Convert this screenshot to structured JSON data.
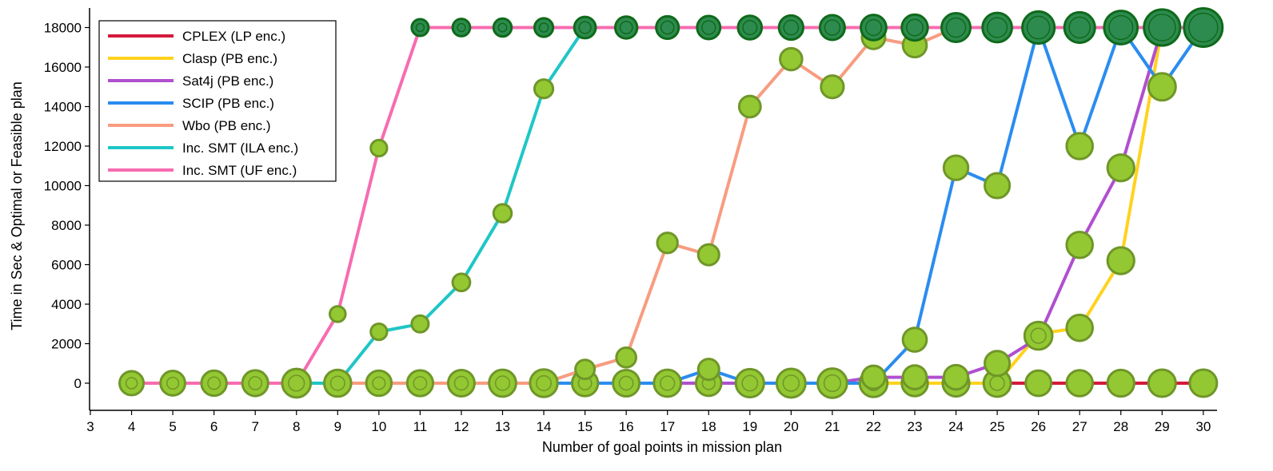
{
  "chart_data": {
    "type": "line",
    "title": "",
    "xlabel": "Number of goal points in mission plan",
    "ylabel": "Time in Sec & Optimal or Feasible plan",
    "xlim": [
      3,
      30.5
    ],
    "ylim": [
      -1300,
      18800
    ],
    "xticks": [
      3,
      4,
      5,
      6,
      7,
      8,
      9,
      10,
      11,
      12,
      13,
      14,
      15,
      16,
      17,
      18,
      19,
      20,
      21,
      22,
      23,
      24,
      25,
      26,
      27,
      28,
      29,
      30
    ],
    "yticks": [
      0,
      2000,
      4000,
      6000,
      8000,
      10000,
      12000,
      14000,
      16000,
      18000
    ],
    "legend_position": "top-left",
    "grid": false,
    "colors": {
      "marker_fill": "#93c832",
      "marker_edge": "#6f9628",
      "timeout_fill": "#2e8b4f",
      "timeout_edge": "#0f6a1a"
    },
    "series": [
      {
        "name": "CPLEX (LP enc.)",
        "color": "#d41a3a",
        "x": [
          4,
          5,
          6,
          7,
          8,
          9,
          10,
          11,
          12,
          13,
          14,
          15,
          16,
          17,
          18,
          19,
          20,
          21,
          22,
          23,
          24,
          25,
          26,
          27,
          28,
          29,
          30
        ],
        "values": [
          0,
          0,
          0,
          0,
          0,
          0,
          0,
          0,
          0,
          0,
          0,
          0,
          0,
          0,
          0,
          0,
          0,
          0,
          0,
          0,
          0,
          0,
          0,
          0,
          0,
          0,
          0
        ]
      },
      {
        "name": "Clasp (PB enc.)",
        "color": "#ffd21e",
        "x": [
          4,
          5,
          6,
          7,
          8,
          9,
          10,
          11,
          12,
          13,
          14,
          15,
          16,
          17,
          18,
          19,
          20,
          21,
          22,
          23,
          24,
          25,
          26,
          27,
          28,
          29,
          30
        ],
        "values": [
          0,
          0,
          0,
          0,
          0,
          0,
          0,
          0,
          0,
          0,
          0,
          0,
          0,
          0,
          0,
          0,
          0,
          0,
          0,
          0,
          0,
          0,
          2500,
          2800,
          6200,
          18000,
          18000
        ]
      },
      {
        "name": "Sat4j (PB enc.)",
        "color": "#b04fd0",
        "x": [
          4,
          5,
          6,
          7,
          8,
          9,
          10,
          11,
          12,
          13,
          14,
          15,
          16,
          17,
          18,
          19,
          20,
          21,
          22,
          23,
          24,
          25,
          26,
          27,
          28,
          29,
          30
        ],
        "values": [
          0,
          0,
          0,
          0,
          0,
          0,
          0,
          0,
          0,
          0,
          0,
          0,
          0,
          0,
          0,
          0,
          0,
          0,
          300,
          300,
          300,
          1000,
          2300,
          7000,
          10900,
          18000,
          18000
        ]
      },
      {
        "name": "SCIP (PB enc.)",
        "color": "#2b8cf0",
        "x": [
          4,
          5,
          6,
          7,
          8,
          9,
          10,
          11,
          12,
          13,
          14,
          15,
          16,
          17,
          18,
          19,
          20,
          21,
          22,
          23,
          24,
          25,
          26,
          27,
          28,
          29,
          30
        ],
        "values": [
          0,
          0,
          0,
          0,
          0,
          0,
          0,
          0,
          0,
          0,
          0,
          0,
          0,
          0,
          700,
          0,
          0,
          0,
          0,
          2200,
          10900,
          10000,
          18000,
          12000,
          18000,
          15000,
          18000
        ]
      },
      {
        "name": "Wbo (PB enc.)",
        "color": "#f89c80",
        "x": [
          4,
          5,
          6,
          7,
          8,
          9,
          10,
          11,
          12,
          13,
          14,
          15,
          16,
          17,
          18,
          19,
          20,
          21,
          22,
          23,
          24,
          25,
          26,
          27,
          28,
          29,
          30
        ],
        "values": [
          0,
          0,
          0,
          0,
          0,
          0,
          0,
          0,
          0,
          0,
          0,
          700,
          1300,
          7100,
          6500,
          14000,
          16400,
          15000,
          17500,
          17100,
          18000,
          18000,
          18000,
          18000,
          18000,
          18000,
          18000
        ]
      },
      {
        "name": "Inc. SMT (ILA enc.)",
        "color": "#1fc6c6",
        "x": [
          8,
          9,
          10,
          11,
          12,
          13,
          14,
          15,
          16,
          17,
          18,
          19,
          20,
          21,
          22,
          23,
          24,
          25,
          26,
          27,
          28,
          29,
          30
        ],
        "values": [
          0,
          0,
          2600,
          3000,
          5100,
          8600,
          14900,
          18000,
          18000,
          18000,
          18000,
          18000,
          18000,
          18000,
          18000,
          18000,
          18000,
          18000,
          18000,
          18000,
          18000,
          18000,
          18000
        ]
      },
      {
        "name": "Inc. SMT (UF enc.)",
        "color": "#f76cb0",
        "x": [
          4,
          5,
          6,
          7,
          8,
          9,
          10,
          11,
          12,
          13,
          14,
          15,
          16,
          17,
          18,
          19,
          20,
          21,
          22,
          23,
          24,
          25,
          26,
          27,
          28,
          29,
          30
        ],
        "values": [
          0,
          0,
          0,
          0,
          0,
          3500,
          11900,
          18000,
          18000,
          18000,
          18000,
          18000,
          18000,
          18000,
          18000,
          18000,
          18000,
          18000,
          18000,
          18000,
          18000,
          18000,
          18000,
          18000,
          18000,
          18000,
          18000
        ]
      }
    ]
  }
}
